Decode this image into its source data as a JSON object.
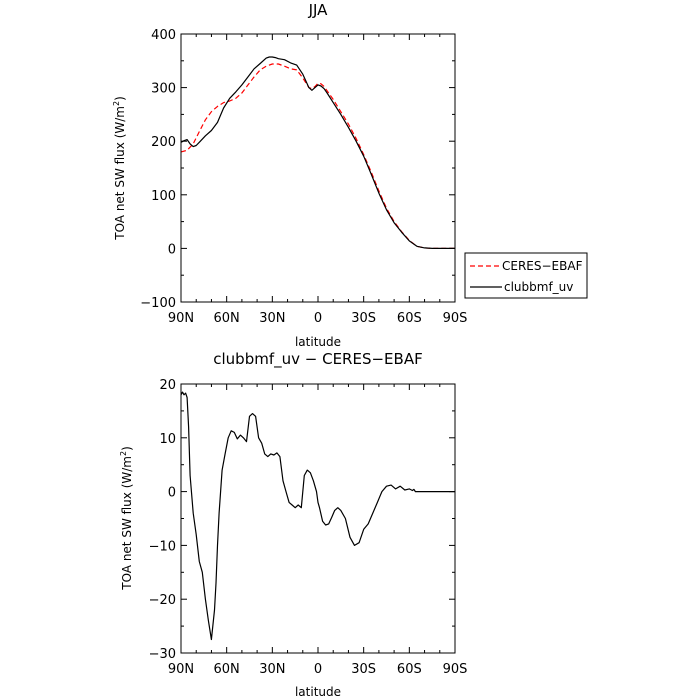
{
  "chart_data": [
    {
      "type": "line",
      "title": "JJA",
      "xlabel": "latitude",
      "ylabel": "TOA net SW flux (W/m²)",
      "ylabel_main": "TOA net SW flux (W/m",
      "ylabel_sup": "2",
      "ylabel_end": ")",
      "xlim": [
        90,
        -90
      ],
      "ylim": [
        -100,
        400
      ],
      "xticks": [
        90,
        60,
        30,
        0,
        -30,
        -60,
        -90
      ],
      "xtick_labels": [
        "90N",
        "60N",
        "30N",
        "0",
        "30S",
        "60S",
        "90S"
      ],
      "yticks": [
        -100,
        0,
        100,
        200,
        300,
        400
      ],
      "ytick_labels": [
        "−100",
        "0",
        "100",
        "200",
        "300",
        "400"
      ],
      "legend_position": "right",
      "series": [
        {
          "name": "CERES−EBAF",
          "color": "#ff0000",
          "style": "dashed",
          "x": [
            90,
            86,
            82,
            78,
            74,
            70,
            66,
            62,
            58,
            54,
            50,
            46,
            42,
            38,
            34,
            30,
            26,
            22,
            18,
            14,
            10,
            6,
            4,
            2,
            0,
            -2,
            -4,
            -6,
            -10,
            -15,
            -20,
            -25,
            -30,
            -35,
            -40,
            -45,
            -50,
            -55,
            -60,
            -65,
            -70,
            -75,
            -80,
            -85,
            -90
          ],
          "y": [
            180,
            183,
            195,
            218,
            240,
            255,
            265,
            272,
            275,
            280,
            290,
            305,
            320,
            333,
            340,
            344,
            344,
            340,
            335,
            333,
            318,
            300,
            298,
            302,
            308,
            307,
            302,
            294,
            278,
            255,
            232,
            205,
            175,
            142,
            107,
            75,
            50,
            31,
            15,
            4,
            1,
            0,
            0,
            0,
            0
          ]
        },
        {
          "name": "clubbmf_uv",
          "color": "#000000",
          "style": "solid",
          "x": [
            90,
            88,
            86,
            84,
            82,
            80,
            78,
            74,
            70,
            66,
            62,
            58,
            54,
            50,
            46,
            42,
            38,
            34,
            32,
            30,
            28,
            26,
            22,
            18,
            14,
            10,
            6,
            4,
            2,
            0,
            -2,
            -4,
            -6,
            -10,
            -15,
            -20,
            -25,
            -30,
            -35,
            -40,
            -45,
            -50,
            -55,
            -60,
            -65,
            -70,
            -75,
            -80,
            -85,
            -90
          ],
          "y": [
            198,
            201,
            203,
            195,
            190,
            192,
            198,
            210,
            220,
            235,
            262,
            280,
            292,
            305,
            320,
            335,
            345,
            355,
            357,
            357,
            356,
            354,
            352,
            346,
            342,
            325,
            300,
            295,
            300,
            305,
            303,
            298,
            290,
            272,
            250,
            226,
            200,
            172,
            138,
            103,
            72,
            48,
            30,
            14,
            4,
            1,
            0,
            0,
            0,
            0
          ]
        }
      ]
    },
    {
      "type": "line",
      "title": "clubbmf_uv − CERES−EBAF",
      "xlabel": "latitude",
      "ylabel": "TOA net SW flux (W/m²)",
      "ylabel_main": "TOA net SW flux (W/m",
      "ylabel_sup": "2",
      "ylabel_end": ")",
      "xlim": [
        90,
        -90
      ],
      "ylim": [
        -30,
        20
      ],
      "xticks": [
        90,
        60,
        30,
        0,
        -30,
        -60,
        -90
      ],
      "xtick_labels": [
        "90N",
        "60N",
        "30N",
        "0",
        "30S",
        "60S",
        "90S"
      ],
      "yticks": [
        -30,
        -20,
        -10,
        0,
        10,
        20
      ],
      "ytick_labels": [
        "−30",
        "−20",
        "−10",
        "0",
        "10",
        "20"
      ],
      "series": [
        {
          "color": "#000000",
          "style": "solid",
          "x": [
            90,
            89,
            88,
            87,
            86,
            85,
            84,
            82,
            80,
            78,
            76,
            74,
            72,
            70,
            68,
            67,
            66,
            65,
            63,
            61,
            59,
            57,
            55,
            53,
            51,
            49,
            47,
            45,
            43,
            41,
            39,
            37,
            35,
            33,
            31,
            29,
            27,
            25,
            23,
            21,
            19,
            17,
            15,
            13,
            11,
            9,
            7,
            5,
            3,
            1,
            0,
            -1,
            -3,
            -5,
            -7,
            -9,
            -11,
            -13,
            -15,
            -18,
            -21,
            -24,
            -27,
            -30,
            -33,
            -36,
            -39,
            -42,
            -45,
            -48,
            -51,
            -54,
            -57,
            -60,
            -62,
            -63,
            -64,
            -65,
            -66,
            -68,
            -70,
            -72,
            -74,
            -76,
            -78,
            -80,
            -84,
            -88,
            -90
          ],
          "y": [
            18,
            18.5,
            18,
            18.3,
            17.5,
            12,
            3,
            -4,
            -8,
            -13,
            -15,
            -20,
            -24,
            -27.5,
            -22,
            -17,
            -10,
            -4,
            4,
            7,
            10,
            11.3,
            11,
            9.8,
            10.5,
            10,
            9.3,
            14,
            14.5,
            14,
            10,
            9,
            7,
            6.5,
            7,
            6.8,
            7.2,
            6.5,
            2,
            0,
            -2,
            -2.5,
            -3,
            -2.5,
            -3,
            3,
            4,
            3.5,
            2,
            0,
            -2,
            -3,
            -5.5,
            -6.2,
            -6,
            -4.8,
            -3.5,
            -3,
            -3.5,
            -5,
            -8.5,
            -10,
            -9.5,
            -7,
            -6,
            -4,
            -2,
            0,
            1,
            1.2,
            0.5,
            1,
            0.3,
            0.5,
            0.2,
            0.4,
            0,
            0,
            0,
            0,
            0,
            0,
            0,
            0,
            0,
            0,
            0,
            0,
            0
          ]
        }
      ]
    }
  ]
}
